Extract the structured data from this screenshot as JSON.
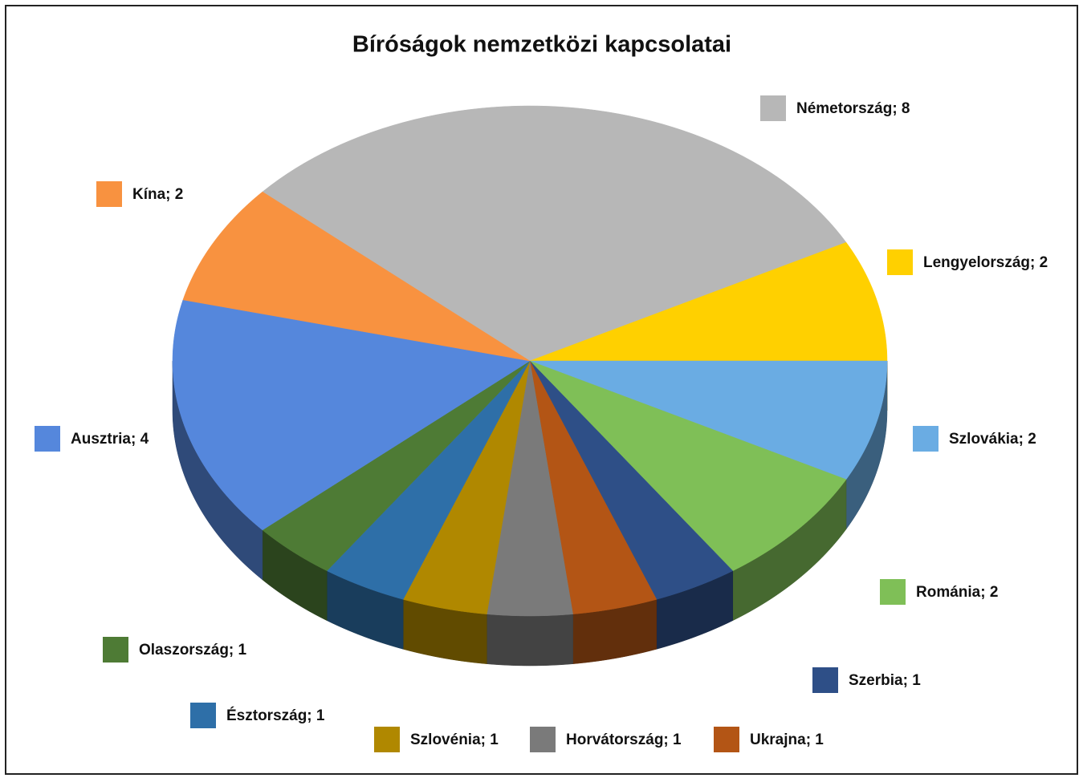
{
  "chart_data": {
    "type": "pie",
    "title": "Bíróságok nemzetközi kapcsolatai",
    "values": [
      8,
      2,
      2,
      2,
      1,
      1,
      1,
      1,
      1,
      1,
      4,
      2
    ],
    "value_labels": [
      "Németország; 8",
      "Lengyelország; 2",
      "Szlovákia; 2",
      "Románia; 2",
      "Szerbia; 1",
      "Ukrajna; 1",
      "Horvátország; 1",
      "Szlovénia; 1",
      "Észtország; 1",
      "Olaszország; 1",
      "Ausztria; 4",
      "Kína; 2"
    ],
    "colors": [
      "#b7b7b7",
      "#ffd000",
      "#6aace3",
      "#7fbf57",
      "#2e4f87",
      "#b35515",
      "#7a7a7a",
      "#b08800",
      "#2e6fa8",
      "#4e7b35",
      "#5587dc",
      "#f89240"
    ]
  }
}
